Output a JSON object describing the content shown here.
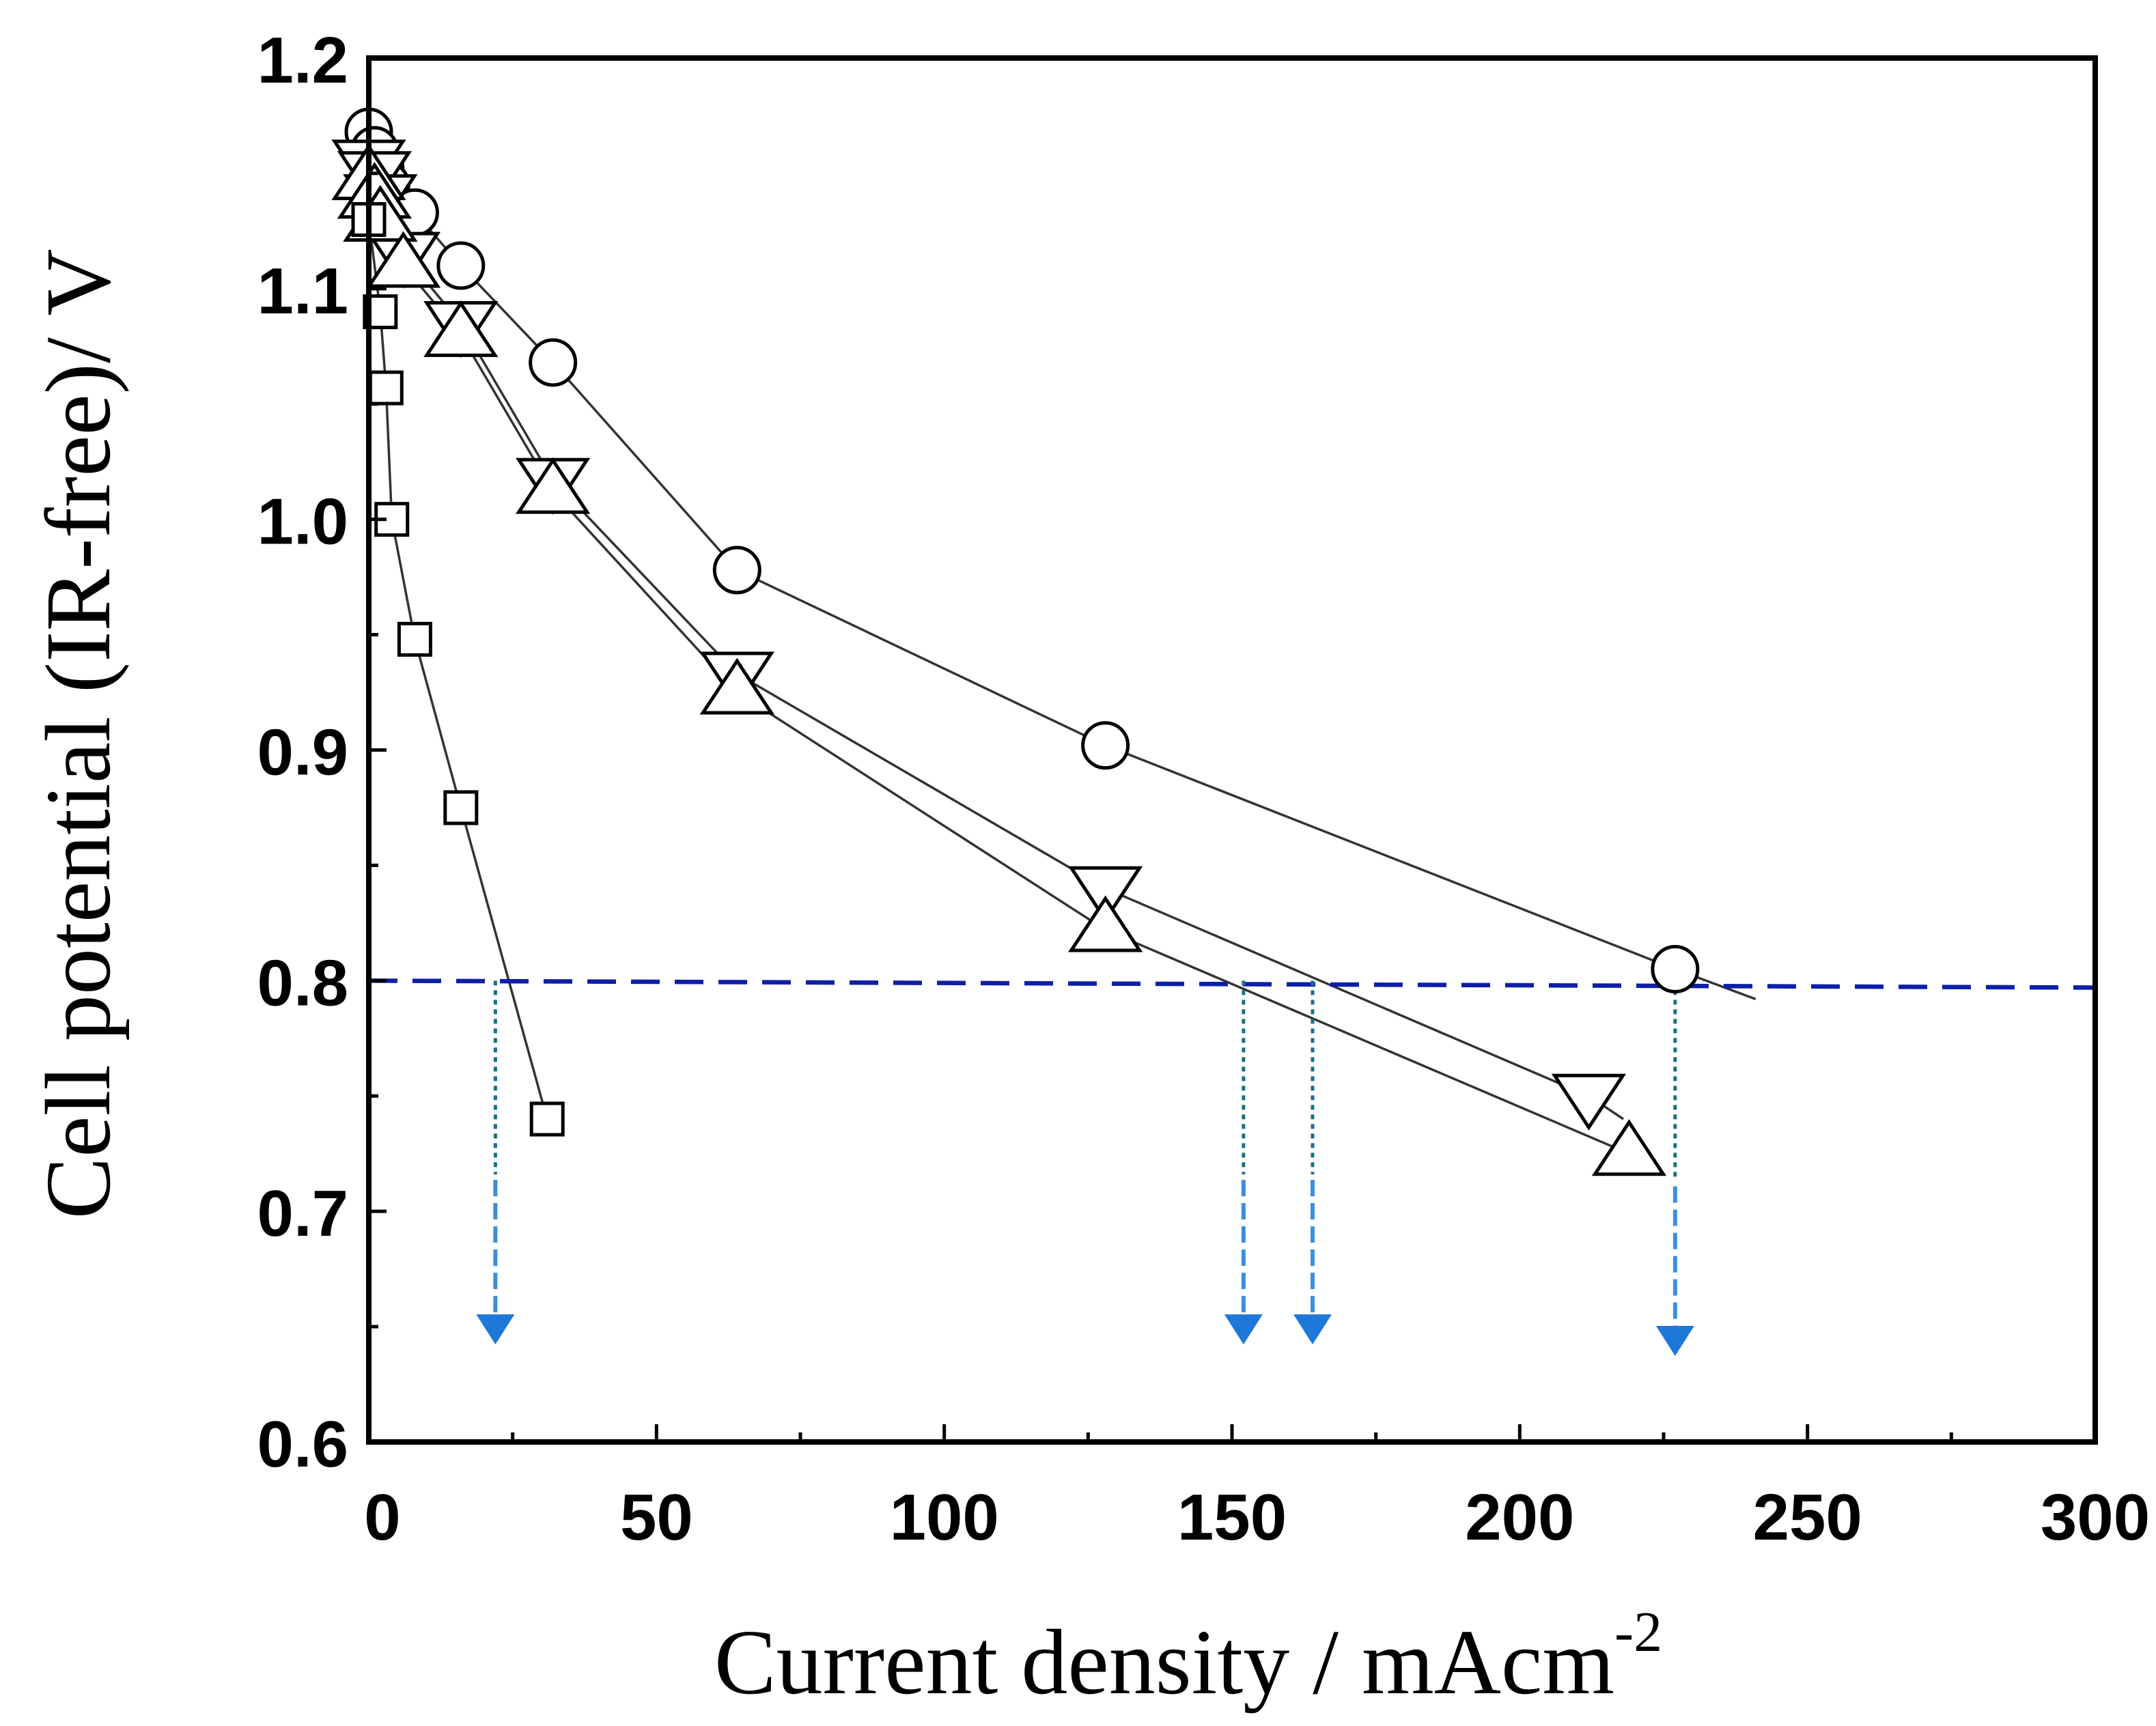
{
  "chart_data": {
    "type": "scatter",
    "title": "",
    "xlabel": "Current density / mAcm",
    "xlabel_superscript": "-2",
    "ylabel": "Cell potential (IR-free)/ V",
    "xlim": [
      0,
      300
    ],
    "ylim": [
      0.6,
      1.2
    ],
    "x_major_ticks": [
      0,
      50,
      100,
      150,
      200,
      250,
      300
    ],
    "x_tick_labels": [
      "0",
      "50",
      "100",
      "150",
      "200",
      "250",
      "300"
    ],
    "x_minor_ticks": [
      25,
      75,
      125,
      175,
      225,
      275
    ],
    "y_major_ticks": [
      0.6,
      0.7,
      0.8,
      0.9,
      1.0,
      1.1,
      1.2
    ],
    "y_tick_labels": [
      "0.6",
      "0.7",
      "0.8",
      "0.9",
      "1.0",
      "1.1",
      "1.2"
    ],
    "y_minor_ticks": [
      0.65,
      0.75,
      0.85,
      0.95,
      1.05,
      1.15
    ],
    "grid": false,
    "series": [
      {
        "name": "circle",
        "marker": "circle",
        "x": [
          0,
          1,
          2,
          3,
          8,
          16,
          32,
          64,
          128,
          227
        ],
        "y": [
          1.168,
          1.16,
          1.152,
          1.145,
          1.133,
          1.11,
          1.068,
          0.978,
          0.902,
          0.805
        ],
        "line_x": [
          0,
          1,
          2,
          3,
          8,
          16,
          32,
          64,
          128,
          227,
          241
        ],
        "line_y": [
          1.168,
          1.16,
          1.152,
          1.145,
          1.133,
          1.11,
          1.068,
          0.978,
          0.902,
          0.805,
          0.792
        ]
      },
      {
        "name": "down-triangle",
        "marker": "triangle-down",
        "x": [
          0,
          1,
          2,
          6,
          16,
          32,
          64,
          128,
          212
        ],
        "y": [
          1.155,
          1.15,
          1.14,
          1.115,
          1.085,
          1.017,
          0.933,
          0.84,
          0.75
        ],
        "line_x": [
          0,
          1,
          2,
          6,
          16,
          32,
          64,
          128,
          212,
          218
        ],
        "line_y": [
          1.155,
          1.15,
          1.14,
          1.115,
          1.085,
          1.017,
          0.933,
          0.84,
          0.75,
          0.74
        ]
      },
      {
        "name": "up-triangle",
        "marker": "triangle-up",
        "x": [
          0,
          1,
          2,
          6,
          16,
          32,
          64,
          128,
          219
        ],
        "y": [
          1.148,
          1.14,
          1.13,
          1.11,
          1.08,
          1.012,
          0.925,
          0.822,
          0.725
        ],
        "line_x": [
          0,
          1,
          2,
          6,
          16,
          32,
          64,
          128,
          219
        ],
        "line_y": [
          1.148,
          1.14,
          1.13,
          1.11,
          1.08,
          1.012,
          0.925,
          0.822,
          0.725
        ]
      },
      {
        "name": "square",
        "marker": "square",
        "x": [
          0,
          2,
          3,
          4,
          8,
          16,
          31
        ],
        "y": [
          1.13,
          1.09,
          1.057,
          1.0,
          0.948,
          0.875,
          0.74
        ],
        "line_x": [
          0,
          2,
          3,
          4,
          8,
          16,
          31
        ],
        "line_y": [
          1.13,
          1.09,
          1.057,
          1.0,
          0.948,
          0.875,
          0.74
        ]
      }
    ],
    "reference_line": {
      "y_start": 0.8,
      "y_end": 0.797,
      "x_start": 0,
      "x_end": 300,
      "color": "#0d1fa8"
    },
    "drop_lines": [
      {
        "x": 22,
        "y_top": 0.8,
        "y_bottom": 0.65
      },
      {
        "x": 152,
        "y_top": 0.8,
        "y_bottom": 0.65
      },
      {
        "x": 164,
        "y_top": 0.8,
        "y_bottom": 0.65
      },
      {
        "x": 227,
        "y_top": 0.8,
        "y_bottom": 0.645
      }
    ],
    "colors": {
      "line": "#333333",
      "marker_stroke": "#000000",
      "reference": "#0d1fa8",
      "drop_line": "#1b6f86",
      "arrow": "#1e78d8"
    }
  }
}
